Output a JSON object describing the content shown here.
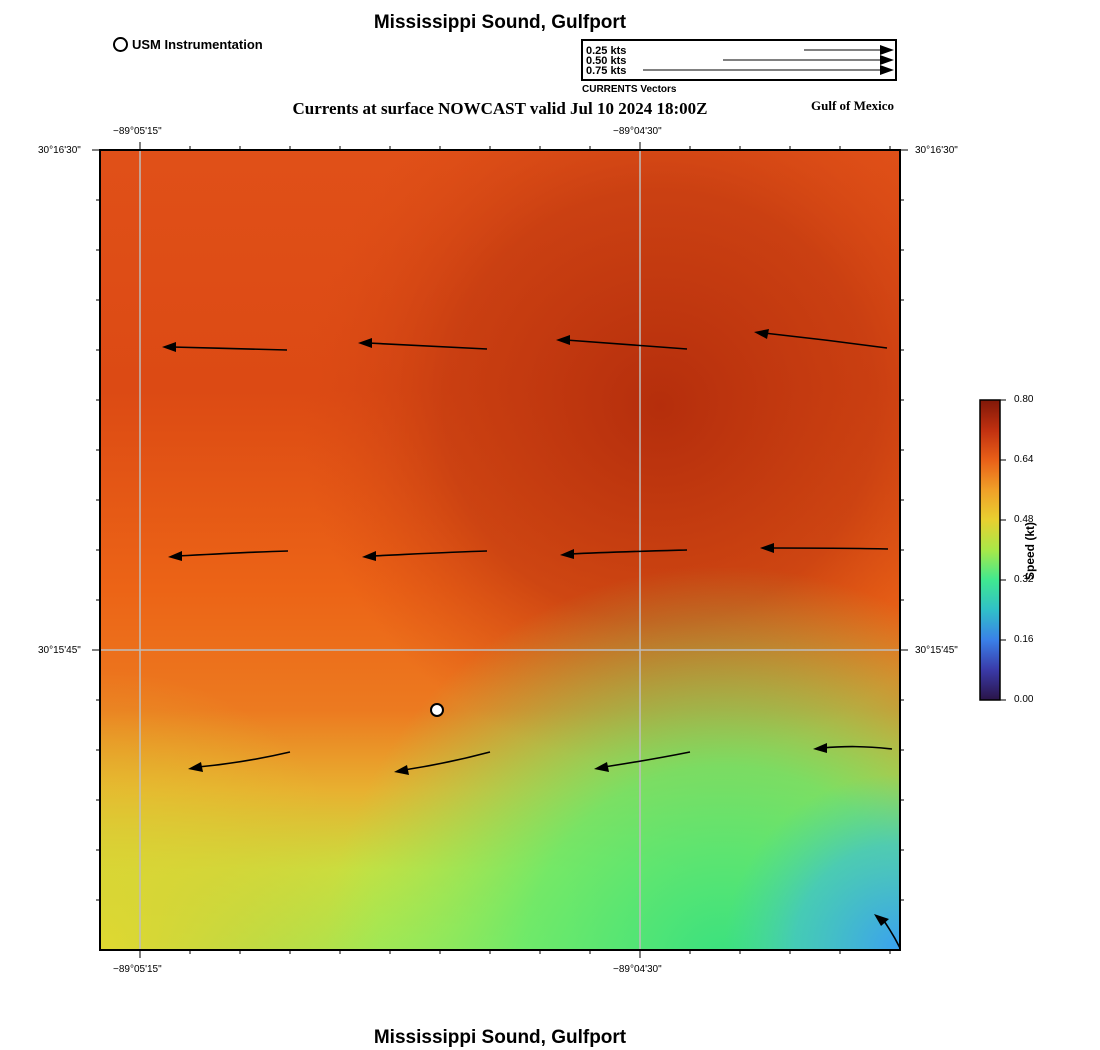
{
  "map": {
    "title_top": "Mississippi Sound, Gulfport",
    "title_bottom": "Mississippi Sound, Gulfport",
    "subtitle": "Currents at surface NOWCAST valid Jul 10 2024 18:00Z",
    "region_label": "Gulf of Mexico"
  },
  "station_legend": {
    "label": "USM Instrumentation"
  },
  "vector_legend": {
    "entries": [
      "0.25 kts",
      "0.50 kts",
      "0.75 kts"
    ],
    "speeds_kt": [
      0.25,
      0.5,
      0.75
    ],
    "caption": "CURRENTS Vectors"
  },
  "axes": {
    "lon_labels": [
      "−89°05'15\"",
      "−89°04'30\""
    ],
    "lat_labels": [
      "30°16'30\"",
      "30°15'45\""
    ]
  },
  "colorbar": {
    "title": "Speed (kt)",
    "ticks": [
      "0.00",
      "0.16",
      "0.32",
      "0.48",
      "0.64",
      "0.80"
    ],
    "min": 0.0,
    "max": 0.8
  },
  "colors": {
    "frame": "#000000",
    "grid": "#bdbdbd",
    "station_fill": "#ffffff"
  }
}
